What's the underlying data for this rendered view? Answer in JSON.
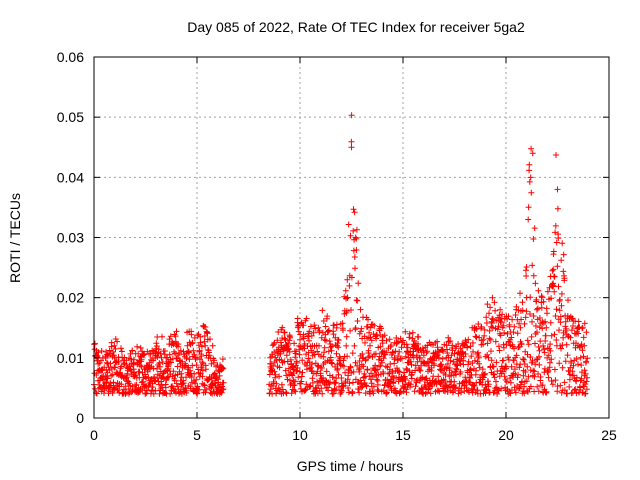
{
  "chart_data": {
    "type": "scatter",
    "title": "Day 085 of 2022, Rate Of TEC Index for receiver 5ga2",
    "xlabel": "GPS time / hours",
    "ylabel": "ROTI / TECUs",
    "xlim": [
      0,
      25
    ],
    "ylim": [
      0,
      0.06
    ],
    "xticks": [
      0,
      5,
      10,
      15,
      20,
      25
    ],
    "xtick_labels": [
      "0",
      "5",
      "10",
      "15",
      "20",
      "25"
    ],
    "yticks": [
      0,
      0.01,
      0.02,
      0.03,
      0.04,
      0.05,
      0.06
    ],
    "ytick_labels": [
      "0",
      "0.01",
      "0.02",
      "0.03",
      "0.04",
      "0.05",
      "0.06"
    ],
    "grid": true,
    "marker": "+",
    "color": "#ff0000",
    "data_gap_hours": [
      6.3,
      8.5
    ],
    "series": [
      {
        "name": "ROTI",
        "x": [
          0.2,
          0.6,
          1.0,
          1.6,
          2.1,
          2.6,
          3.0,
          3.5,
          4.0,
          4.2,
          4.6,
          5.0,
          5.4,
          5.7,
          6.1,
          8.6,
          9.1,
          9.5,
          10.0,
          10.6,
          11.2,
          11.8,
          12.3,
          12.5,
          12.7,
          12.9,
          13.4,
          14.0,
          14.6,
          15.2,
          15.8,
          16.5,
          17.1,
          17.8,
          18.4,
          18.9,
          19.3,
          19.7,
          20.2,
          20.7,
          21.0,
          21.2,
          21.5,
          21.9,
          22.3,
          22.5,
          22.9,
          23.4,
          23.8
        ],
        "y": [
          0.009,
          0.008,
          0.01,
          0.007,
          0.009,
          0.008,
          0.011,
          0.01,
          0.012,
          0.009,
          0.011,
          0.01,
          0.012,
          0.009,
          0.007,
          0.009,
          0.012,
          0.011,
          0.013,
          0.012,
          0.013,
          0.012,
          0.02,
          0.045,
          0.03,
          0.014,
          0.012,
          0.011,
          0.01,
          0.011,
          0.01,
          0.009,
          0.01,
          0.009,
          0.011,
          0.013,
          0.016,
          0.014,
          0.013,
          0.015,
          0.02,
          0.04,
          0.018,
          0.016,
          0.022,
          0.038,
          0.016,
          0.014,
          0.012
        ]
      }
    ]
  }
}
